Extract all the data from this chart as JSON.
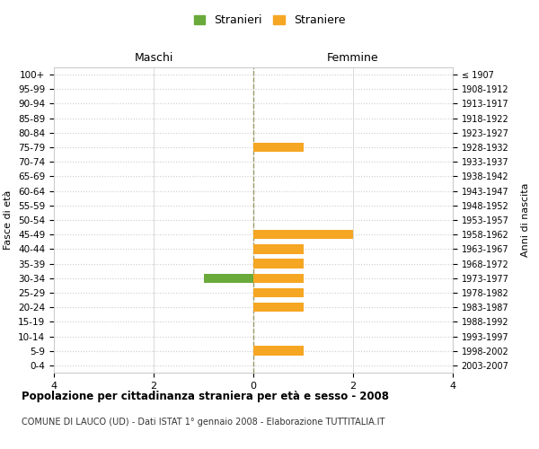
{
  "age_groups": [
    "100+",
    "95-99",
    "90-94",
    "85-89",
    "80-84",
    "75-79",
    "70-74",
    "65-69",
    "60-64",
    "55-59",
    "50-54",
    "45-49",
    "40-44",
    "35-39",
    "30-34",
    "25-29",
    "20-24",
    "15-19",
    "10-14",
    "5-9",
    "0-4"
  ],
  "birth_years": [
    "≤ 1907",
    "1908-1912",
    "1913-1917",
    "1918-1922",
    "1923-1927",
    "1928-1932",
    "1933-1937",
    "1938-1942",
    "1943-1947",
    "1948-1952",
    "1953-1957",
    "1958-1962",
    "1963-1967",
    "1968-1972",
    "1973-1977",
    "1978-1982",
    "1983-1987",
    "1988-1992",
    "1993-1997",
    "1998-2002",
    "2003-2007"
  ],
  "maschi_values": [
    0,
    0,
    0,
    0,
    0,
    0,
    0,
    0,
    0,
    0,
    0,
    0,
    0,
    0,
    1,
    0,
    0,
    0,
    0,
    0,
    0
  ],
  "femmine_values": [
    0,
    0,
    0,
    0,
    0,
    1,
    0,
    0,
    0,
    0,
    0,
    2,
    1,
    1,
    1,
    1,
    1,
    0,
    0,
    1,
    0
  ],
  "maschi_color": "#6aaa3a",
  "femmine_color": "#f5a623",
  "xlim": 4,
  "title": "Popolazione per cittadinanza straniera per età e sesso - 2008",
  "subtitle": "COMUNE DI LAUCO (UD) - Dati ISTAT 1° gennaio 2008 - Elaborazione TUTTITALIA.IT",
  "ylabel_left": "Fasce di età",
  "ylabel_right": "Anni di nascita",
  "maschi_label": "Maschi",
  "femmine_label": "Femmine",
  "legend_stranieri": "Stranieri",
  "legend_straniere": "Straniere",
  "grid_color": "#cccccc",
  "zeroline_color": "#999966",
  "background_color": "#ffffff",
  "bar_height": 0.65
}
